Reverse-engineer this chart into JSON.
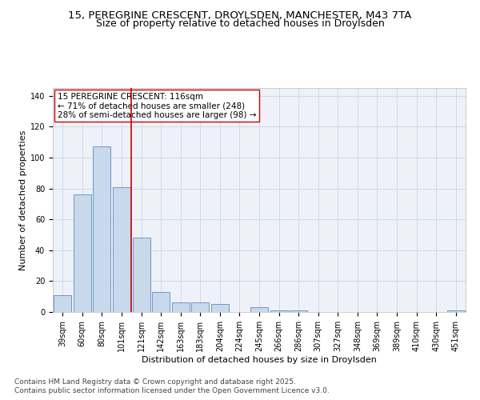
{
  "title_line1": "15, PEREGRINE CRESCENT, DROYLSDEN, MANCHESTER, M43 7TA",
  "title_line2": "Size of property relative to detached houses in Droylsden",
  "xlabel": "Distribution of detached houses by size in Droylsden",
  "ylabel": "Number of detached properties",
  "categories": [
    "39sqm",
    "60sqm",
    "80sqm",
    "101sqm",
    "121sqm",
    "142sqm",
    "163sqm",
    "183sqm",
    "204sqm",
    "224sqm",
    "245sqm",
    "266sqm",
    "286sqm",
    "307sqm",
    "327sqm",
    "348sqm",
    "369sqm",
    "389sqm",
    "410sqm",
    "430sqm",
    "451sqm"
  ],
  "values": [
    11,
    76,
    107,
    81,
    48,
    13,
    6,
    6,
    5,
    0,
    3,
    1,
    1,
    0,
    0,
    0,
    0,
    0,
    0,
    0,
    1
  ],
  "bar_color": "#c9d9ec",
  "bar_edge_color": "#5a8abf",
  "grid_color": "#d0d8e8",
  "background_color": "#eef2f8",
  "vline_x": 3.5,
  "vline_color": "#cc0000",
  "annotation_line1": "15 PEREGRINE CRESCENT: 116sqm",
  "annotation_line2": "← 71% of detached houses are smaller (248)",
  "annotation_line3": "28% of semi-detached houses are larger (98) →",
  "ylim": [
    0,
    145
  ],
  "yticks": [
    0,
    20,
    40,
    60,
    80,
    100,
    120,
    140
  ],
  "footer_line1": "Contains HM Land Registry data © Crown copyright and database right 2025.",
  "footer_line2": "Contains public sector information licensed under the Open Government Licence v3.0.",
  "title_fontsize": 9.5,
  "subtitle_fontsize": 9,
  "axis_label_fontsize": 8,
  "tick_fontsize": 7,
  "annotation_fontsize": 7.5,
  "footer_fontsize": 6.5
}
